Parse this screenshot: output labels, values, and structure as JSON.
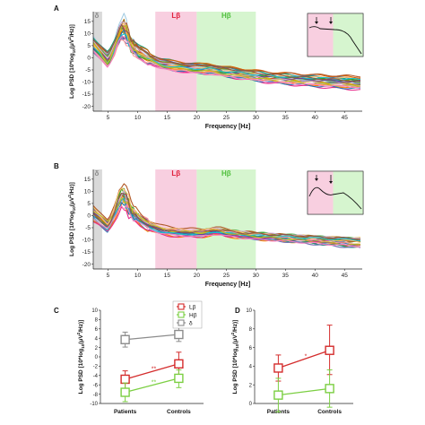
{
  "chart_data": [
    {
      "panel": "A",
      "type": "line",
      "xlabel": "Frequency [Hz]",
      "ylabel_parts": [
        "Log PSD [10*log",
        "10",
        "(μV",
        "2",
        "/Hz)]"
      ],
      "xlim": [
        2.5,
        48
      ],
      "ylim": [
        -22,
        19
      ],
      "xticks": [
        5,
        10,
        15,
        20,
        25,
        30,
        35,
        40,
        45
      ],
      "yticks": [
        -20,
        -15,
        -10,
        -5,
        0,
        5,
        10,
        15
      ],
      "bands": [
        {
          "label": "δ",
          "from": 2.5,
          "to": 4,
          "color": "#d9d9d9",
          "label_color": "#8c8c8c"
        },
        {
          "label": "Lβ",
          "from": 13,
          "to": 20,
          "color": "#f8cfe0",
          "label_color": "#e0203c"
        },
        {
          "label": "Hβ",
          "from": 20,
          "to": 30,
          "color": "#d6f5cf",
          "label_color": "#4fbf3c"
        }
      ],
      "curve_count": 24,
      "mean_curve": {
        "x": [
          2.5,
          4,
          5,
          6,
          7,
          7.5,
          8,
          8.5,
          9,
          10,
          11,
          12,
          13,
          14,
          15,
          16,
          17,
          18,
          19,
          20,
          21,
          22,
          23,
          24,
          25,
          26,
          27,
          28,
          30,
          32,
          35,
          38,
          41,
          44,
          48
        ],
        "y": [
          5.5,
          1.5,
          -1.5,
          3.5,
          10.5,
          12.5,
          11,
          7.5,
          5,
          2.5,
          1,
          -0.5,
          -1.5,
          -2.5,
          -3,
          -3.5,
          -3.8,
          -4,
          -4.2,
          -4.4,
          -4.6,
          -4.5,
          -4.8,
          -5.3,
          -5.8,
          -6,
          -6.3,
          -6.6,
          -7.2,
          -7.8,
          -8.3,
          -8.8,
          -9.2,
          -9.6,
          -10
        ]
      },
      "inset": {
        "arrows": 2
      }
    },
    {
      "panel": "B",
      "type": "line",
      "xlabel": "Frequency [Hz]",
      "ylabel_parts": [
        "Log PSD [10*log",
        "10",
        "(μV",
        "2",
        "/Hz)]"
      ],
      "xlim": [
        2.5,
        48
      ],
      "ylim": [
        -22,
        19
      ],
      "xticks": [
        5,
        10,
        15,
        20,
        25,
        30,
        35,
        40,
        45
      ],
      "yticks": [
        -20,
        -15,
        -10,
        -5,
        0,
        5,
        10,
        15
      ],
      "bands": [
        {
          "label": "δ",
          "from": 2.5,
          "to": 4,
          "color": "#d9d9d9",
          "label_color": "#8c8c8c"
        },
        {
          "label": "Lβ",
          "from": 13,
          "to": 20,
          "color": "#f8cfe0",
          "label_color": "#e0203c"
        },
        {
          "label": "Hβ",
          "from": 20,
          "to": 30,
          "color": "#d6f5cf",
          "label_color": "#4fbf3c"
        }
      ],
      "curve_count": 24,
      "mean_curve": {
        "x": [
          2.5,
          4,
          5,
          6,
          7,
          7.5,
          8,
          8.5,
          9,
          10,
          11,
          12,
          13,
          14,
          15,
          16,
          17,
          18,
          19,
          20,
          21,
          22,
          23,
          24,
          25,
          26,
          27,
          28,
          30,
          32,
          35,
          38,
          41,
          44,
          48
        ],
        "y": [
          1,
          -2,
          -4,
          0.5,
          6.5,
          8,
          6.5,
          4,
          1.5,
          -0.5,
          -2.5,
          -4,
          -5,
          -5.8,
          -6.3,
          -6.6,
          -6.8,
          -6.9,
          -7,
          -7.1,
          -7.1,
          -6.6,
          -6.2,
          -6.4,
          -7,
          -7.2,
          -7.5,
          -7.8,
          -8.2,
          -8.5,
          -9,
          -9.5,
          -10,
          -10.5,
          -11
        ]
      },
      "inset": {
        "arrows": 2
      }
    },
    {
      "panel": "C",
      "type": "line",
      "categories": [
        "Patients",
        "Controls"
      ],
      "ylabel_parts": [
        "Log PSD [10*log",
        "10",
        "(μV",
        "2",
        "/Hz)]"
      ],
      "ylim": [
        -10,
        10
      ],
      "yticks": [
        -10,
        -8,
        -6,
        -4,
        -2,
        0,
        2,
        4,
        6,
        8,
        10
      ],
      "legend_position": "top-right",
      "series": [
        {
          "name": "Lβ",
          "color": "#d42c2c",
          "values": [
            -4.8,
            -1.5
          ],
          "err_low": [
            2.0,
            2.5
          ],
          "err_high": [
            1.8,
            2.5
          ]
        },
        {
          "name": "Hβ",
          "color": "#7ccf43",
          "values": [
            -7.6,
            -4.6
          ],
          "err_low": [
            2.0,
            2.0
          ],
          "err_high": [
            2.0,
            1.8
          ]
        },
        {
          "name": "δ",
          "color": "#8c8c8c",
          "values": [
            3.7,
            4.8
          ],
          "err_low": [
            1.6,
            1.5
          ],
          "err_high": [
            1.6,
            1.5
          ]
        }
      ],
      "annotations": [
        {
          "text": "**",
          "color": "#d42c2c",
          "between": "Lβ"
        },
        {
          "text": "**",
          "color": "#7ccf43",
          "between": "Hβ"
        }
      ]
    },
    {
      "panel": "D",
      "type": "line",
      "categories": [
        "Patients",
        "Controls"
      ],
      "ylabel_parts": [
        "Log PSD [10*log",
        "10",
        "(μV",
        "2",
        "/Hz)]"
      ],
      "ylim": [
        0,
        10
      ],
      "yticks": [
        0,
        2,
        4,
        6,
        8,
        10
      ],
      "series": [
        {
          "name": "",
          "color": "#d42c2c",
          "values": [
            3.8,
            5.7
          ],
          "err_low": [
            1.4,
            2.6
          ],
          "err_high": [
            1.4,
            2.7
          ]
        },
        {
          "name": "",
          "color": "#7ccf43",
          "values": [
            0.9,
            1.6
          ],
          "err_low": [
            1.8,
            2.0
          ],
          "err_high": [
            1.8,
            2.0
          ]
        }
      ],
      "annotations": [
        {
          "text": "*",
          "color": "#d42c2c",
          "between": "red"
        }
      ]
    }
  ],
  "line_palette": [
    "#e41a1c",
    "#377eb8",
    "#4daf4a",
    "#984ea3",
    "#ff7f00",
    "#a6cee3",
    "#1b9e77",
    "#d95f02",
    "#7570b3",
    "#e7298a",
    "#66a61e",
    "#e6ab02",
    "#a6761d",
    "#1f78b4",
    "#33a02c",
    "#fb9a99",
    "#b15928",
    "#6a3d9a",
    "#cab2d6",
    "#fdbf6f",
    "#17becf",
    "#bcbd22",
    "#8c564b",
    "#f781bf"
  ]
}
